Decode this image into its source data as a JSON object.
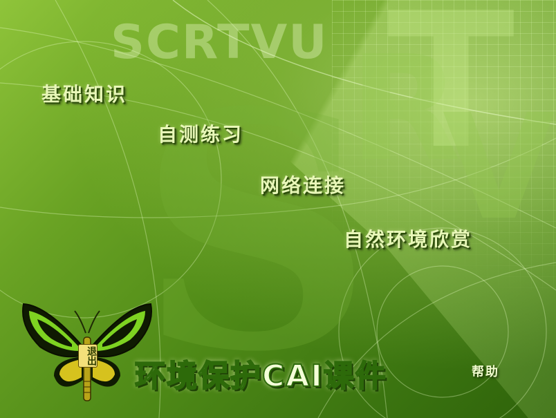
{
  "watermark": {
    "scrtvu": "SCRTVU",
    "letter_r": "R",
    "letter_t": "T",
    "letter_v": "V",
    "letter_s": "S"
  },
  "menu": {
    "basics": "基础知识",
    "self_test": "自测练习",
    "network": "网络连接",
    "nature": "自然环境欣赏"
  },
  "course_title": "环境保护CAI课件",
  "help_label": "帮助",
  "exit_label": "退出",
  "colors": {
    "background": "#4f8a17",
    "menu_text": "#e8f7b8",
    "title_text": "#f4ffd8",
    "butterfly_wing": "#7ed321"
  },
  "icons": {
    "exit": "butterfly-icon"
  }
}
